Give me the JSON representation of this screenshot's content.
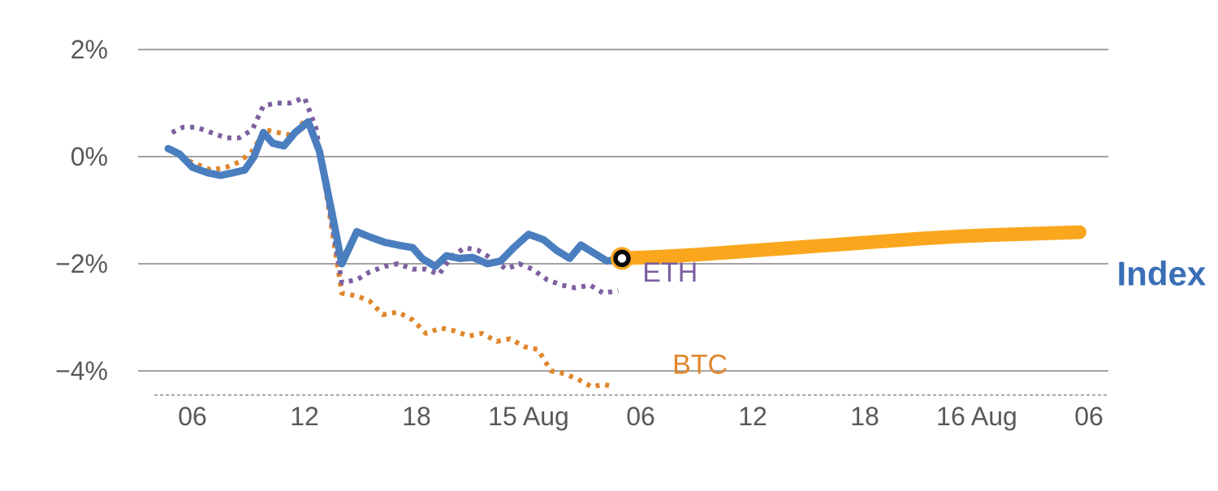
{
  "chart_data": {
    "type": "line",
    "title": "",
    "xlabel": "",
    "ylabel": "",
    "x_unit": "hours since 14 Aug 00:00",
    "ylim": [
      -4.6,
      2.4
    ],
    "grid": true,
    "legend_position": "inline-annotations",
    "y_ticks": [
      {
        "value": 2,
        "label": "2%"
      },
      {
        "value": 0,
        "label": "0%"
      },
      {
        "value": -2,
        "label": "−2%"
      },
      {
        "value": -4,
        "label": "−4%"
      }
    ],
    "x_ticks": [
      {
        "hour": 6,
        "label": "06"
      },
      {
        "hour": 12,
        "label": "12"
      },
      {
        "hour": 18,
        "label": "18"
      },
      {
        "hour": 24,
        "label": "15 Aug"
      },
      {
        "hour": 30,
        "label": "06"
      },
      {
        "hour": 36,
        "label": "12"
      },
      {
        "hour": 42,
        "label": "18"
      },
      {
        "hour": 48,
        "label": "16 Aug"
      },
      {
        "hour": 54,
        "label": "06"
      }
    ],
    "series": [
      {
        "name": "BTC",
        "color": "#e0862c",
        "style": "dotted",
        "width": 6,
        "points": [
          [
            4.9,
            0.1
          ],
          [
            5.6,
            -0.05
          ],
          [
            6.3,
            -0.15
          ],
          [
            7.0,
            -0.25
          ],
          [
            7.8,
            -0.2
          ],
          [
            8.5,
            -0.1
          ],
          [
            9.2,
            0.1
          ],
          [
            9.9,
            0.5
          ],
          [
            10.6,
            0.45
          ],
          [
            11.3,
            0.4
          ],
          [
            12.1,
            0.7
          ],
          [
            12.8,
            0.15
          ],
          [
            13.4,
            -1.2
          ],
          [
            14.0,
            -2.55
          ],
          [
            14.8,
            -2.6
          ],
          [
            15.5,
            -2.7
          ],
          [
            16.2,
            -2.95
          ],
          [
            17.0,
            -2.9
          ],
          [
            17.8,
            -3.05
          ],
          [
            18.5,
            -3.3
          ],
          [
            19.3,
            -3.2
          ],
          [
            20.0,
            -3.25
          ],
          [
            20.8,
            -3.35
          ],
          [
            21.5,
            -3.3
          ],
          [
            22.3,
            -3.45
          ],
          [
            23.0,
            -3.4
          ],
          [
            23.8,
            -3.55
          ],
          [
            24.5,
            -3.6
          ],
          [
            25.2,
            -4.0
          ],
          [
            25.9,
            -4.05
          ],
          [
            26.6,
            -4.15
          ],
          [
            27.4,
            -4.3
          ],
          [
            28.0,
            -4.25
          ],
          [
            28.6,
            -4.3
          ]
        ]
      },
      {
        "name": "ETH",
        "color": "#7d60a0",
        "style": "dotted",
        "width": 6,
        "points": [
          [
            4.9,
            0.45
          ],
          [
            5.5,
            0.55
          ],
          [
            6.2,
            0.55
          ],
          [
            7.0,
            0.45
          ],
          [
            7.8,
            0.35
          ],
          [
            8.5,
            0.35
          ],
          [
            9.2,
            0.5
          ],
          [
            9.8,
            0.95
          ],
          [
            10.5,
            1.0
          ],
          [
            11.2,
            1.0
          ],
          [
            12.0,
            1.1
          ],
          [
            12.6,
            0.55
          ],
          [
            13.3,
            -0.9
          ],
          [
            14.0,
            -2.35
          ],
          [
            14.8,
            -2.3
          ],
          [
            15.5,
            -2.15
          ],
          [
            16.3,
            -2.05
          ],
          [
            17.0,
            -2.0
          ],
          [
            17.8,
            -2.1
          ],
          [
            18.5,
            -2.1
          ],
          [
            19.2,
            -2.2
          ],
          [
            19.9,
            -1.85
          ],
          [
            20.6,
            -1.7
          ],
          [
            21.3,
            -1.75
          ],
          [
            22.0,
            -1.9
          ],
          [
            22.8,
            -2.1
          ],
          [
            23.5,
            -2.0
          ],
          [
            24.2,
            -2.1
          ],
          [
            25.0,
            -2.3
          ],
          [
            25.8,
            -2.4
          ],
          [
            26.5,
            -2.45
          ],
          [
            27.3,
            -2.4
          ],
          [
            28.0,
            -2.55
          ],
          [
            28.8,
            -2.5
          ]
        ]
      },
      {
        "name": "Index",
        "color": "#4a7ebf",
        "style": "solid",
        "width": 9,
        "points": [
          [
            4.7,
            0.15
          ],
          [
            5.3,
            0.05
          ],
          [
            6.0,
            -0.2
          ],
          [
            6.8,
            -0.3
          ],
          [
            7.5,
            -0.35
          ],
          [
            8.2,
            -0.3
          ],
          [
            8.8,
            -0.25
          ],
          [
            9.3,
            0.0
          ],
          [
            9.8,
            0.45
          ],
          [
            10.3,
            0.25
          ],
          [
            10.9,
            0.2
          ],
          [
            11.5,
            0.45
          ],
          [
            12.2,
            0.65
          ],
          [
            12.8,
            0.1
          ],
          [
            13.5,
            -1.1
          ],
          [
            14.0,
            -2.0
          ],
          [
            14.8,
            -1.4
          ],
          [
            15.5,
            -1.5
          ],
          [
            16.3,
            -1.6
          ],
          [
            17.0,
            -1.65
          ],
          [
            17.8,
            -1.7
          ],
          [
            18.3,
            -1.9
          ],
          [
            19.0,
            -2.05
          ],
          [
            19.6,
            -1.85
          ],
          [
            20.3,
            -1.9
          ],
          [
            21.0,
            -1.88
          ],
          [
            21.8,
            -2.0
          ],
          [
            22.5,
            -1.95
          ],
          [
            23.2,
            -1.7
          ],
          [
            24.0,
            -1.45
          ],
          [
            24.8,
            -1.55
          ],
          [
            25.5,
            -1.75
          ],
          [
            26.2,
            -1.9
          ],
          [
            26.8,
            -1.65
          ],
          [
            27.5,
            -1.8
          ],
          [
            28.2,
            -1.95
          ],
          [
            29.0,
            -1.9
          ]
        ]
      },
      {
        "name": "Index forecast",
        "color": "#faa71e",
        "style": "solid",
        "width": 17,
        "points": [
          [
            29.0,
            -1.9
          ],
          [
            31,
            -1.87
          ],
          [
            33,
            -1.83
          ],
          [
            35,
            -1.78
          ],
          [
            37,
            -1.73
          ],
          [
            39,
            -1.68
          ],
          [
            41,
            -1.63
          ],
          [
            43,
            -1.58
          ],
          [
            45,
            -1.53
          ],
          [
            47,
            -1.49
          ],
          [
            49,
            -1.46
          ],
          [
            51,
            -1.44
          ],
          [
            53.5,
            -1.41
          ]
        ]
      }
    ],
    "marker": {
      "series": "Index",
      "hour": 29.0,
      "pct": -1.9,
      "outer_color": "#faa71e",
      "ring_color": "#0a0a0a",
      "inner_color": "#ffffff"
    },
    "annotations": [
      {
        "text": "ETH",
        "color": "#7d60a0",
        "hour": 30.1,
        "pct": -2.33,
        "bold": false
      },
      {
        "text": "BTC",
        "color": "#e0862c",
        "hour": 31.7,
        "pct": -4.05,
        "bold": false
      },
      {
        "text": "Index",
        "color": "#3a6fb7",
        "hour": 55.5,
        "pct": -2.4,
        "bold": true
      }
    ],
    "axis": {
      "grid_color": "#a3a3a3",
      "tick_color": "#595959",
      "bottom_axis_y_pct": -4.45,
      "bottom_axis_style": "dashed"
    }
  }
}
